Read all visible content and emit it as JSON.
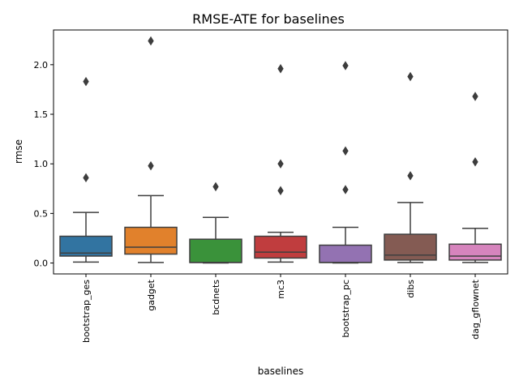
{
  "chart_data": {
    "type": "box",
    "title": "RMSE-ATE for baselines",
    "xlabel": "baselines",
    "ylabel": "rmse",
    "ylim": [
      -0.11,
      2.35
    ],
    "yticks": [
      "0.0",
      "0.5",
      "1.0",
      "1.5",
      "2.0"
    ],
    "grid": false,
    "legend": "none",
    "categories": [
      "bootstrap_ges",
      "gadget",
      "bcdnets",
      "mc3",
      "bootstrap_pc",
      "dibs",
      "dag_gflownet"
    ],
    "colors": [
      "#3274a1",
      "#e1812c",
      "#3a923a",
      "#c03d3e",
      "#9372b2",
      "#845b53",
      "#d684bd"
    ],
    "boxes": [
      {
        "name": "bootstrap_ges",
        "whisker_low": 0.01,
        "q1": 0.07,
        "median": 0.1,
        "q3": 0.27,
        "whisker_high": 0.51,
        "outliers": [
          0.86,
          1.83
        ]
      },
      {
        "name": "gadget",
        "whisker_low": 0.005,
        "q1": 0.09,
        "median": 0.16,
        "q3": 0.36,
        "whisker_high": 0.68,
        "outliers": [
          0.98,
          2.24
        ]
      },
      {
        "name": "bcdnets",
        "whisker_low": 0.0,
        "q1": 0.005,
        "median": 0.005,
        "q3": 0.24,
        "whisker_high": 0.46,
        "outliers": [
          0.77
        ]
      },
      {
        "name": "mc3",
        "whisker_low": 0.01,
        "q1": 0.05,
        "median": 0.11,
        "q3": 0.27,
        "whisker_high": 0.31,
        "outliers": [
          0.73,
          1.0,
          1.96
        ]
      },
      {
        "name": "bootstrap_pc",
        "whisker_low": 0.0,
        "q1": 0.005,
        "median": 0.005,
        "q3": 0.18,
        "whisker_high": 0.36,
        "outliers": [
          0.74,
          1.13,
          1.99
        ]
      },
      {
        "name": "dibs",
        "whisker_low": 0.005,
        "q1": 0.03,
        "median": 0.08,
        "q3": 0.29,
        "whisker_high": 0.61,
        "outliers": [
          0.88,
          1.88
        ]
      },
      {
        "name": "dag_gflownet",
        "whisker_low": 0.005,
        "q1": 0.03,
        "median": 0.07,
        "q3": 0.19,
        "whisker_high": 0.35,
        "outliers": [
          1.02,
          1.68
        ]
      }
    ]
  }
}
